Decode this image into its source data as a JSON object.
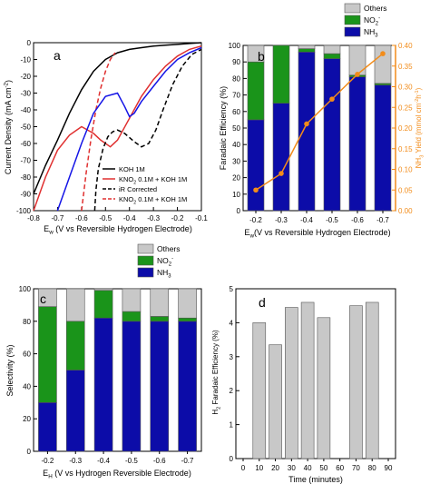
{
  "colors": {
    "others": "#c8c8c8",
    "no2": "#1a941a",
    "nh3": "#0c0ca8",
    "yield_line": "#f28c1a",
    "axis": "#000000",
    "koh": "#000000",
    "kno2": "#e03030",
    "ir_black": "#000000",
    "ir_red": "#e03030",
    "ir_blue": "#1414e6"
  },
  "chart_data": [
    {
      "panel": "a",
      "type": "line",
      "xlabel": "E",
      "xlabel_sub": "w",
      "xlabel_rest": " (V vs Reversible Hydrogen Electrode)",
      "ylabel": "Current Density (mA cm",
      "ylabel_sup": "-2",
      "ylabel_end": ")",
      "xlim": [
        -0.8,
        -0.1
      ],
      "ylim": [
        -100,
        0
      ],
      "xticks": [
        "-0.8",
        "-0.7",
        "-0.6",
        "-0.5",
        "-0.4",
        "-0.3",
        "-0.2",
        "-0.1"
      ],
      "yticks": [
        "0",
        "-10",
        "-20",
        "-30",
        "-40",
        "-50",
        "-60",
        "-70",
        "-80",
        "-90",
        "-100"
      ],
      "legend": {
        "koh": "KOH 1M",
        "kno2": "KNO",
        "kno2_sub": "2",
        "kno2_rest": " 0.1M + KOH 1M",
        "ir": "iR Corrected",
        "ir_kno2": "KNO",
        "ir_kno2_sub": "2",
        "ir_kno2_rest": " 0.1M + KOH 1M"
      },
      "series": [
        {
          "key": "koh",
          "style": "solid",
          "x": [
            -0.8,
            -0.75,
            -0.7,
            -0.65,
            -0.6,
            -0.55,
            -0.5,
            -0.45,
            -0.4,
            -0.35,
            -0.3,
            -0.25,
            -0.2,
            -0.15,
            -0.1
          ],
          "y": [
            -90,
            -73,
            -58,
            -42,
            -28,
            -17,
            -10,
            -6,
            -4,
            -3,
            -2,
            -1.5,
            -1,
            -0.5,
            0
          ]
        },
        {
          "key": "kno2",
          "style": "solid",
          "x": [
            -0.8,
            -0.75,
            -0.7,
            -0.65,
            -0.6,
            -0.55,
            -0.52,
            -0.48,
            -0.45,
            -0.4,
            -0.35,
            -0.3,
            -0.25,
            -0.2,
            -0.15,
            -0.1
          ],
          "y": [
            -100,
            -80,
            -64,
            -55,
            -50,
            -54,
            -58,
            -62,
            -58,
            -45,
            -32,
            -22,
            -14,
            -8,
            -4,
            -2
          ]
        },
        {
          "key": "ir_koh",
          "style": "dashed",
          "x": [
            -0.6,
            -0.58,
            -0.56,
            -0.54,
            -0.52,
            -0.5,
            -0.48,
            -0.46
          ],
          "y": [
            -100,
            -77,
            -57,
            -40,
            -27,
            -17,
            -10,
            -6
          ]
        },
        {
          "key": "ir_kno2",
          "style": "dashed",
          "x": [
            -0.545,
            -0.54,
            -0.53,
            -0.51,
            -0.49,
            -0.47,
            -0.45,
            -0.42,
            -0.38,
            -0.35,
            -0.32,
            -0.29,
            -0.26,
            -0.22,
            -0.18,
            -0.14,
            -0.1
          ],
          "y": [
            -100,
            -88,
            -75,
            -63,
            -56,
            -53,
            -52,
            -54,
            -59,
            -62,
            -60,
            -52,
            -40,
            -25,
            -14,
            -7,
            -4
          ]
        },
        {
          "key": "blue",
          "style": "solid",
          "x": [
            -0.7,
            -0.65,
            -0.6,
            -0.55,
            -0.5,
            -0.45,
            -0.42,
            -0.4,
            -0.38,
            -0.35,
            -0.3,
            -0.25,
            -0.2,
            -0.15,
            -0.1
          ],
          "y": [
            -100,
            -80,
            -60,
            -42,
            -32,
            -30,
            -38,
            -44,
            -42,
            -35,
            -26,
            -17,
            -10,
            -6,
            -3
          ]
        }
      ]
    },
    {
      "panel": "b",
      "type": "bar",
      "categories": [
        "-0.2",
        "-0.3",
        "-0.4",
        "-0.5",
        "-0.6",
        "-0.7"
      ],
      "xlabel": "E",
      "xlabel_sub": "w",
      "xlabel_rest": "(V vs Reversible Hydrogen Electrode)",
      "ylabel": "Faradaic Efficiency (%)",
      "ylabel_right": "NH",
      "ylabel_right_sub": "3",
      "ylabel_right_rest": " Yield (mmol cm",
      "ylabel_right_sup": "-2",
      "ylabel_right_end": "h",
      "ylabel_right_sup2": "-1",
      "ylabel_right_end2": ")",
      "ylim": [
        0,
        100
      ],
      "yticks": [
        "0",
        "10",
        "20",
        "30",
        "40",
        "50",
        "60",
        "70",
        "80",
        "90",
        "100"
      ],
      "y2lim": [
        0,
        0.4
      ],
      "y2ticks": [
        "0.00",
        "0.05",
        "0.10",
        "0.15",
        "0.20",
        "0.25",
        "0.30",
        "0.35",
        "0.40"
      ],
      "legend": [
        "Others",
        "NO",
        "NH"
      ],
      "legend_sub": [
        "",
        "2",
        "3"
      ],
      "legend_sup": [
        "",
        "-",
        ""
      ],
      "series": [
        {
          "key": "nh3",
          "values": [
            55,
            65,
            96,
            92,
            81,
            76
          ]
        },
        {
          "key": "no2",
          "values": [
            35,
            35,
            2,
            3,
            1,
            1
          ]
        },
        {
          "key": "others",
          "values": [
            10,
            0,
            2,
            5,
            18,
            23
          ]
        }
      ],
      "yield": [
        0.05,
        0.09,
        0.21,
        0.27,
        0.33,
        0.38
      ]
    },
    {
      "panel": "c",
      "type": "bar",
      "categories": [
        "-0.2",
        "-0.3",
        "-0.4",
        "-0.5",
        "-0.6",
        "-0.7"
      ],
      "xlabel": "E",
      "xlabel_sub": "H",
      "xlabel_rest": " (V vs Hydrogen Reversible Electrode)",
      "ylabel": "Selectivity (%)",
      "ylim": [
        0,
        100
      ],
      "yticks": [
        "0",
        "20",
        "40",
        "60",
        "80",
        "100"
      ],
      "legend": [
        "Others",
        "NO",
        "NH"
      ],
      "legend_sub": [
        "",
        "2",
        "3"
      ],
      "legend_sup": [
        "",
        "-",
        ""
      ],
      "series": [
        {
          "key": "nh3",
          "values": [
            30,
            50,
            82,
            80,
            80,
            80
          ]
        },
        {
          "key": "no2",
          "values": [
            59,
            30,
            17,
            6,
            3,
            2
          ]
        },
        {
          "key": "others",
          "values": [
            11,
            20,
            1,
            14,
            17,
            18
          ]
        }
      ]
    },
    {
      "panel": "d",
      "type": "bar",
      "categories": [
        "10",
        "20",
        "30",
        "40",
        "50",
        "60",
        "70",
        "80",
        "90"
      ],
      "xticks": [
        "0",
        "10",
        "20",
        "30",
        "40",
        "50",
        "60",
        "70",
        "80",
        "90"
      ],
      "values": [
        4.0,
        3.35,
        4.45,
        4.6,
        4.15,
        0,
        4.5,
        4.6,
        0
      ],
      "xlabel": "Time (minutes)",
      "ylabel": "H",
      "ylabel_sub": "2",
      "ylabel_rest": " Faradaic Efficiency (%)",
      "ylim": [
        0,
        5
      ],
      "yticks": [
        "0",
        "1",
        "2",
        "3",
        "4",
        "5"
      ]
    }
  ]
}
